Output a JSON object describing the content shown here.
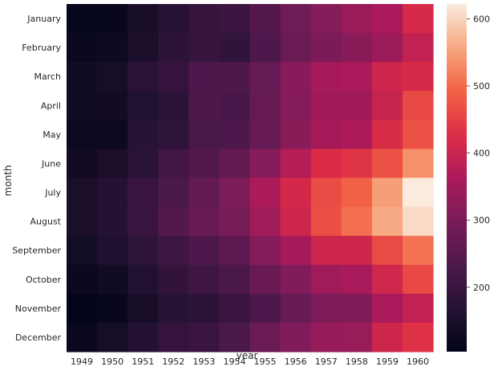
{
  "chart_data": {
    "type": "heatmap",
    "xlabel": "year",
    "ylabel": "month",
    "x_categories": [
      "1949",
      "1950",
      "1951",
      "1952",
      "1953",
      "1954",
      "1955",
      "1956",
      "1957",
      "1958",
      "1959",
      "1960"
    ],
    "y_categories": [
      "January",
      "February",
      "March",
      "April",
      "May",
      "June",
      "July",
      "August",
      "September",
      "October",
      "November",
      "December"
    ],
    "values": [
      [
        112,
        115,
        145,
        171,
        196,
        204,
        242,
        284,
        315,
        340,
        360,
        417
      ],
      [
        118,
        126,
        150,
        180,
        196,
        188,
        233,
        277,
        301,
        318,
        342,
        391
      ],
      [
        132,
        141,
        178,
        193,
        236,
        235,
        267,
        317,
        356,
        362,
        406,
        419
      ],
      [
        129,
        135,
        163,
        181,
        235,
        227,
        269,
        313,
        348,
        348,
        396,
        461
      ],
      [
        121,
        125,
        172,
        183,
        229,
        234,
        270,
        318,
        355,
        363,
        420,
        472
      ],
      [
        135,
        149,
        178,
        218,
        243,
        264,
        315,
        374,
        422,
        435,
        472,
        535
      ],
      [
        148,
        170,
        199,
        230,
        264,
        302,
        364,
        413,
        465,
        491,
        548,
        622
      ],
      [
        148,
        170,
        199,
        242,
        272,
        293,
        347,
        405,
        467,
        505,
        559,
        606
      ],
      [
        136,
        158,
        184,
        209,
        237,
        259,
        312,
        355,
        404,
        404,
        463,
        508
      ],
      [
        119,
        133,
        162,
        191,
        211,
        229,
        274,
        306,
        347,
        359,
        407,
        461
      ],
      [
        104,
        114,
        146,
        172,
        180,
        203,
        237,
        271,
        305,
        310,
        362,
        390
      ],
      [
        118,
        140,
        166,
        194,
        201,
        229,
        278,
        306,
        336,
        337,
        405,
        432
      ]
    ],
    "colorbar": {
      "min": 104,
      "max": 622,
      "ticks": [
        "200",
        "300",
        "400",
        "500",
        "600"
      ],
      "tick_values": [
        200,
        300,
        400,
        500,
        600
      ]
    },
    "colormap": "rocket",
    "grid": false,
    "legend": "colorbar-right"
  }
}
